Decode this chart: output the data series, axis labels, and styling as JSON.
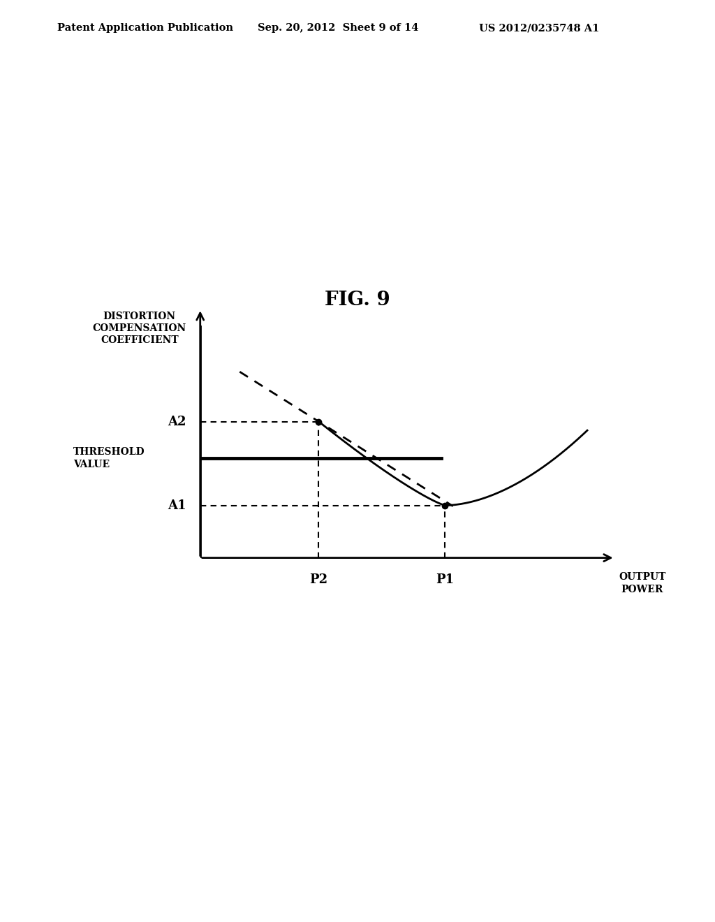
{
  "title": "FIG. 9",
  "header_left": "Patent Application Publication",
  "header_mid": "Sep. 20, 2012  Sheet 9 of 14",
  "header_right": "US 2012/0235748 A1",
  "ylabel": "DISTORTION\nCOMPENSATION\nCOEFFICIENT",
  "xlabel": "OUTPUT\nPOWER",
  "y_label_A2": "A2",
  "y_label_A1": "A1",
  "x_label_P2": "P2",
  "x_label_P1": "P1",
  "threshold_label": "THRESHOLD\nVALUE",
  "background_color": "#ffffff",
  "P1": 0.62,
  "P2": 0.3,
  "A1": 0.2,
  "A2": 0.52,
  "threshold": 0.38,
  "xlim": [
    0,
    1.05
  ],
  "ylim": [
    0,
    0.95
  ]
}
